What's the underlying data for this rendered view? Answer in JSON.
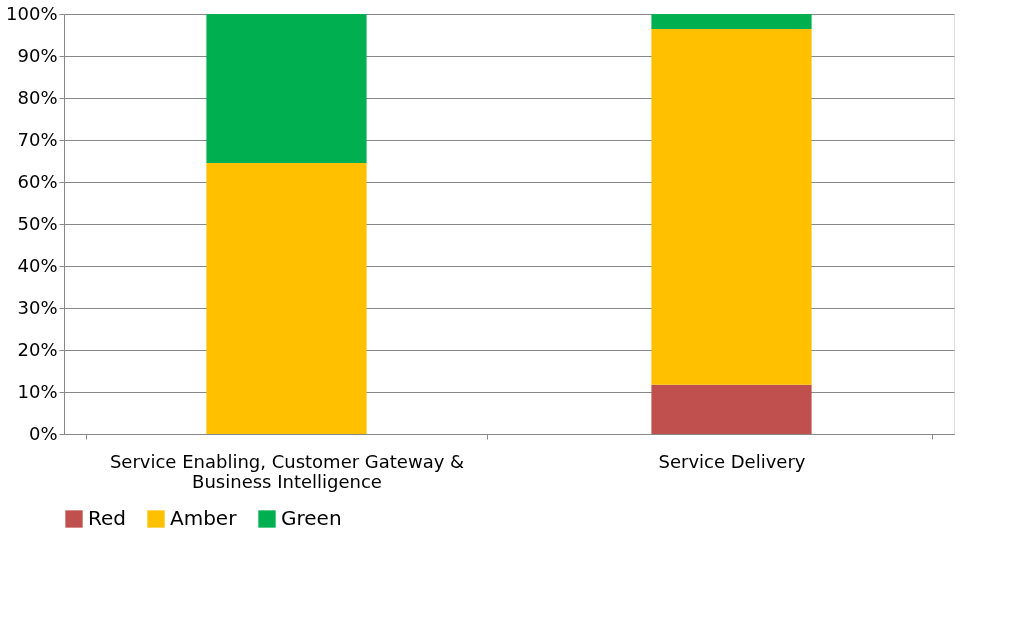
{
  "chart_data": {
    "type": "bar",
    "stacked": true,
    "categories": [
      "Service Enabling, Customer Gateway & Business Intelligence",
      "Service Delivery"
    ],
    "series": [
      {
        "name": "Red",
        "color": "#c0504d",
        "values": [
          0,
          11.7
        ]
      },
      {
        "name": "Amber",
        "color": "#ffc000",
        "values": [
          64.5,
          84.7
        ]
      },
      {
        "name": "Green",
        "color": "#00b050",
        "values": [
          35.5,
          3.6
        ]
      }
    ],
    "ylim": [
      0,
      100
    ],
    "yticks": [
      {
        "value": 0,
        "label": "0%"
      },
      {
        "value": 10,
        "label": "10%"
      },
      {
        "value": 20,
        "label": "20%"
      },
      {
        "value": 30,
        "label": "30%"
      },
      {
        "value": 40,
        "label": "40%"
      },
      {
        "value": 50,
        "label": "50%"
      },
      {
        "value": 60,
        "label": "60%"
      },
      {
        "value": 70,
        "label": "70%"
      },
      {
        "value": 80,
        "label": "80%"
      },
      {
        "value": 90,
        "label": "90%"
      },
      {
        "value": 100,
        "label": "100%"
      }
    ],
    "grid": "y",
    "legend": "bottom"
  }
}
